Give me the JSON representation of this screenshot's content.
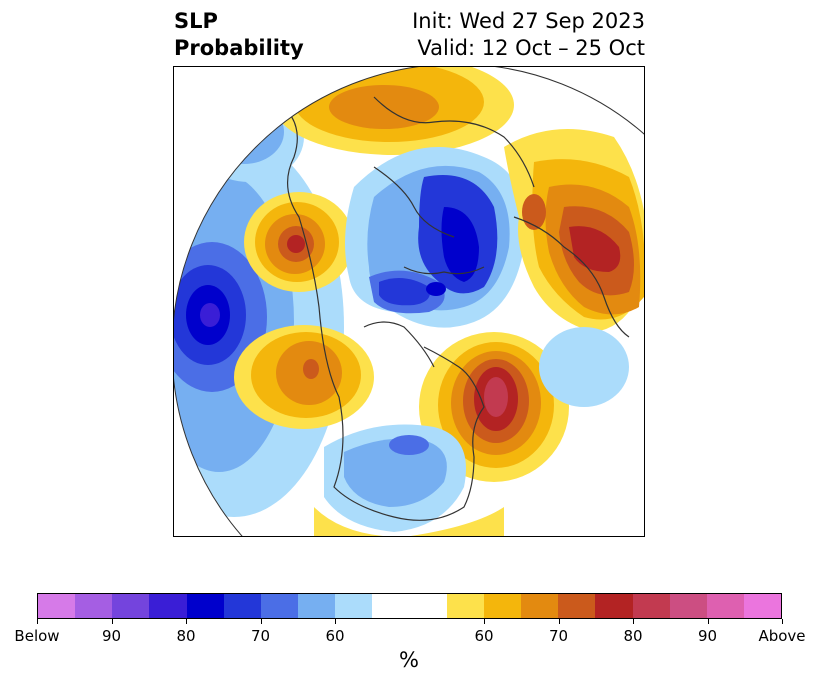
{
  "header": {
    "title_line1": "SLP",
    "title_line2": "Probability",
    "init_label": "Init: Wed 27 Sep 2023",
    "valid_label": "Valid: 12 Oct – 25 Oct"
  },
  "colorbar": {
    "colors": [
      "#d67ae8",
      "#a55ee3",
      "#7444dd",
      "#3a1ed6",
      "#0000cc",
      "#2337d8",
      "#4b6ee6",
      "#76aff1",
      "#abdcfb",
      "#ffffff",
      "#ffffff",
      "#fde14b",
      "#f4b60c",
      "#e38a10",
      "#cb5a1c",
      "#b32323",
      "#c23a50",
      "#cc4e82",
      "#de60b0",
      "#eb75de"
    ],
    "tick_labels": [
      "Below",
      "90",
      "80",
      "70",
      "60",
      "60",
      "70",
      "80",
      "90",
      "Above"
    ],
    "label": "%"
  },
  "map": {
    "projection": "polar-stereographic",
    "region": "Northern Hemisphere"
  }
}
